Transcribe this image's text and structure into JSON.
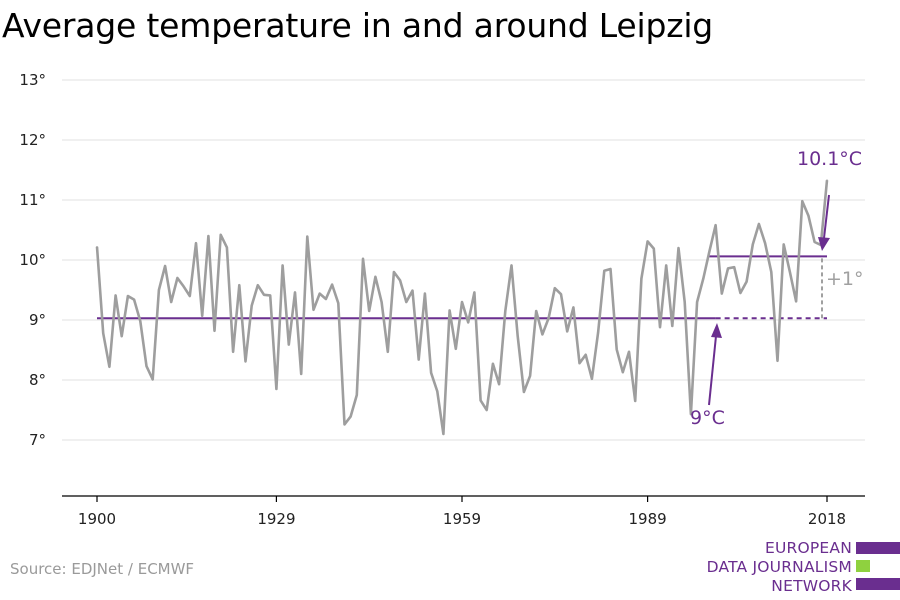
{
  "title": "Average temperature in and around Leipzig",
  "source": "Source: EDJNet / ECMWF",
  "logo": {
    "lines": [
      "EUROPEAN",
      "DATA JOURNALISM",
      "NETWORK"
    ],
    "colors": {
      "purple": "#6a2e8f",
      "green": "#8fd13f"
    }
  },
  "colors": {
    "series": "#9e9e9e",
    "mean": "#6a2e8f",
    "grid": "#e2e2e2",
    "annotation_gray": "#a0a0a0"
  },
  "chart_data": {
    "type": "line",
    "xlim": [
      1900,
      2018
    ],
    "ylim": [
      6.5,
      13
    ],
    "x_ticks": [
      1900,
      1929,
      1959,
      1989,
      2018
    ],
    "x_tick_labels": [
      "1900",
      "1929",
      "1959",
      "1989",
      "2018"
    ],
    "y_ticks": [
      7,
      8,
      9,
      10,
      11,
      12,
      13
    ],
    "y_tick_labels": [
      "7°",
      "8°",
      "9°",
      "10°",
      "11°",
      "12°",
      "13°"
    ],
    "grid": true,
    "series": [
      {
        "x": [
          1900,
          1901,
          1902,
          1903,
          1904,
          1905,
          1906,
          1907,
          1908,
          1909,
          1910,
          1911,
          1912,
          1913,
          1914,
          1915,
          1916,
          1917,
          1918,
          1919,
          1920,
          1921,
          1922,
          1923,
          1924,
          1925,
          1926,
          1927,
          1928,
          1929,
          1930,
          1931,
          1932,
          1933,
          1934,
          1935,
          1936,
          1937,
          1938,
          1939,
          1940,
          1941,
          1942,
          1943,
          1944,
          1945,
          1946,
          1947,
          1948,
          1949,
          1950,
          1951,
          1952,
          1953,
          1954,
          1955,
          1956,
          1957,
          1958,
          1959,
          1960,
          1961,
          1962,
          1963,
          1964,
          1965,
          1966,
          1967,
          1968,
          1969,
          1970,
          1971,
          1972,
          1973,
          1974,
          1975,
          1976,
          1977,
          1978,
          1979,
          1980,
          1981,
          1982,
          1983,
          1984,
          1985,
          1986,
          1987,
          1988,
          1989,
          1990,
          1991,
          1992,
          1993,
          1994,
          1995,
          1996,
          1997,
          1998,
          1999,
          2000,
          2001,
          2002,
          2003,
          2004,
          2005,
          2006,
          2007,
          2008,
          2009,
          2010,
          2011,
          2012,
          2013,
          2014,
          2015,
          2016,
          2017,
          2018
        ],
        "values": [
          10.22,
          8.78,
          8.22,
          9.41,
          8.73,
          9.4,
          9.34,
          8.98,
          8.23,
          8.01,
          9.5,
          9.9,
          9.3,
          9.7,
          9.56,
          9.4,
          10.28,
          9.07,
          10.4,
          8.82,
          10.42,
          10.21,
          8.47,
          9.58,
          8.31,
          9.24,
          9.58,
          9.42,
          9.41,
          7.85,
          9.91,
          8.59,
          9.46,
          8.1,
          10.39,
          9.17,
          9.44,
          9.35,
          9.59,
          9.28,
          7.26,
          7.39,
          7.75,
          10.02,
          9.15,
          9.72,
          9.3,
          8.47,
          9.8,
          9.66,
          9.3,
          9.49,
          8.34,
          9.44,
          8.12,
          7.81,
          7.1,
          9.16,
          8.52,
          9.3,
          8.96,
          9.46,
          7.66,
          7.5,
          8.27,
          7.93,
          9.15,
          9.91,
          8.73,
          7.8,
          8.07,
          9.15,
          8.76,
          9.03,
          9.53,
          9.43,
          8.81,
          9.21,
          8.28,
          8.42,
          8.02,
          8.79,
          9.82,
          9.85,
          8.51,
          8.13,
          8.47,
          7.65,
          9.69,
          10.31,
          10.19,
          8.88,
          9.91,
          8.9,
          10.2,
          9.3,
          7.43,
          9.3,
          9.69,
          10.15,
          10.58,
          9.44,
          9.86,
          9.88,
          9.45,
          9.64,
          10.26,
          10.6,
          10.28,
          9.8,
          8.32,
          10.26,
          9.8,
          9.31,
          10.98,
          10.74,
          10.3,
          10.25,
          11.33
        ]
      }
    ],
    "reference_lines": [
      {
        "label": "9°C",
        "value": 9.03,
        "from": 1900,
        "to": 2018
      },
      {
        "label": "10.1°C",
        "value": 10.06,
        "from": 1999,
        "to": 2018
      }
    ],
    "annotations": [
      "9°C",
      "10.1°C",
      "+1°"
    ]
  }
}
